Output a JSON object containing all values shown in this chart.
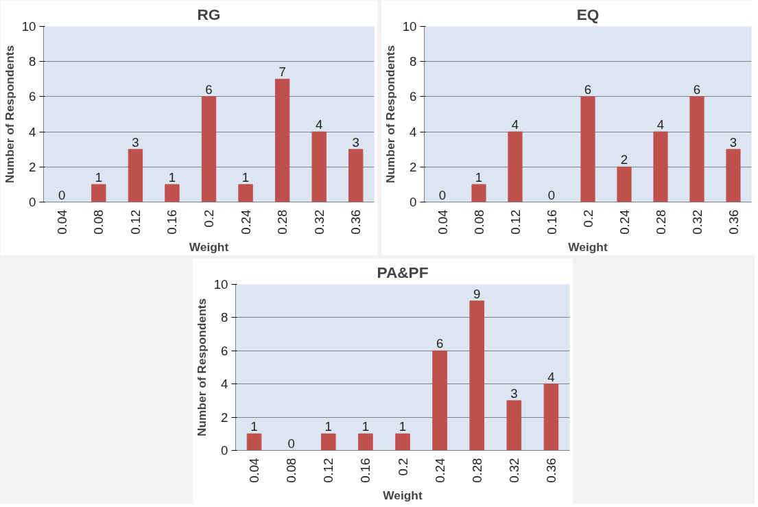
{
  "chart_data": [
    {
      "type": "bar",
      "title": "RG",
      "xlabel": "Weight",
      "ylabel": "Number of Respondents",
      "categories": [
        "0.04",
        "0.08",
        "0.12",
        "0.16",
        "0.2",
        "0.24",
        "0.28",
        "0.32",
        "0.36"
      ],
      "values": [
        0,
        1,
        3,
        1,
        6,
        1,
        7,
        4,
        3
      ],
      "color": "#c0504d",
      "ylim": [
        0,
        10
      ],
      "yticks": [
        0,
        2,
        4,
        6,
        8,
        10
      ],
      "grid": "y",
      "data_labels": true,
      "legend": false
    },
    {
      "type": "bar",
      "title": "EQ",
      "xlabel": "Weight",
      "ylabel": "Number of Respondents",
      "categories": [
        "0.04",
        "0.08",
        "0.12",
        "0.16",
        "0.2",
        "0.24",
        "0.28",
        "0.32",
        "0.36"
      ],
      "values": [
        0,
        1,
        4,
        0,
        6,
        2,
        4,
        6,
        3
      ],
      "color": "#c0504d",
      "ylim": [
        0,
        10
      ],
      "yticks": [
        0,
        2,
        4,
        6,
        8,
        10
      ],
      "grid": "y",
      "data_labels": true,
      "legend": false
    },
    {
      "type": "bar",
      "title": "PA&PF",
      "xlabel": "Weight",
      "ylabel": "Number of Respondents",
      "categories": [
        "0.04",
        "0.08",
        "0.12",
        "0.16",
        "0.2",
        "0.24",
        "0.28",
        "0.32",
        "0.36"
      ],
      "values": [
        1,
        0,
        1,
        1,
        1,
        6,
        9,
        3,
        4
      ],
      "color": "#c0504d",
      "ylim": [
        0,
        10
      ],
      "yticks": [
        0,
        2,
        4,
        6,
        8,
        10
      ],
      "grid": "y",
      "data_labels": true,
      "legend": false
    }
  ]
}
